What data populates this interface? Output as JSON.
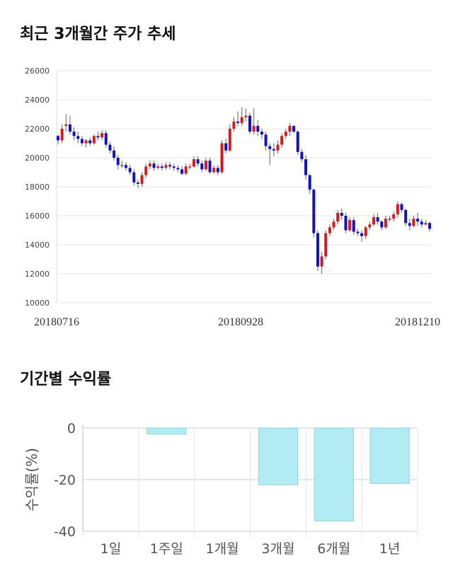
{
  "sections": {
    "price_title": "최근 3개월간 주가 추세",
    "returns_title": "기간별 수익률"
  },
  "colors": {
    "up": "#d7191c",
    "down": "#1010c8",
    "wick": "#666666",
    "bar_fill": "#b3ebf2",
    "bar_stroke": "#8fd3e0",
    "grid": "#e6e6e6"
  },
  "chart_data": [
    {
      "type": "candlestick",
      "title": "최근 3개월간 주가 추세",
      "ylim": [
        10000,
        26000
      ],
      "yticks": [
        10000,
        12000,
        14000,
        16000,
        18000,
        20000,
        22000,
        24000,
        26000
      ],
      "xtick_labels": [
        "20180716",
        "20180928",
        "20181210"
      ],
      "grid": true,
      "candles": [
        [
          21500,
          21200,
          21600,
          20900
        ],
        [
          21200,
          22000,
          22300,
          21000
        ],
        [
          22200,
          22300,
          23000,
          21800
        ],
        [
          22300,
          21800,
          22900,
          21600
        ],
        [
          21800,
          21500,
          22100,
          21200
        ],
        [
          21500,
          21300,
          21800,
          21000
        ],
        [
          21300,
          21000,
          21500,
          20800
        ],
        [
          21000,
          21200,
          21300,
          20700
        ],
        [
          21200,
          21000,
          21400,
          20800
        ],
        [
          21000,
          21500,
          21600,
          20900
        ],
        [
          21500,
          21400,
          21800,
          21200
        ],
        [
          21400,
          21700,
          21900,
          21200
        ],
        [
          21700,
          20900,
          21900,
          20700
        ],
        [
          20900,
          20500,
          21100,
          20300
        ],
        [
          20500,
          20000,
          20800,
          19800
        ],
        [
          20000,
          19500,
          20200,
          19200
        ],
        [
          19500,
          19500,
          19800,
          19300
        ],
        [
          19500,
          19300,
          19700,
          19100
        ],
        [
          19300,
          19000,
          19500,
          18800
        ],
        [
          19000,
          18300,
          19200,
          18100
        ],
        [
          18300,
          18200,
          18500,
          17900
        ],
        [
          18200,
          18800,
          19000,
          18000
        ],
        [
          18800,
          19400,
          19600,
          18600
        ],
        [
          19400,
          19600,
          19800,
          19200
        ],
        [
          19600,
          19300,
          19800,
          19100
        ],
        [
          19300,
          19400,
          19600,
          19200
        ],
        [
          19400,
          19300,
          19600,
          19100
        ],
        [
          19300,
          19500,
          19700,
          19200
        ],
        [
          19500,
          19400,
          19700,
          19200
        ],
        [
          19400,
          19300,
          19600,
          19100
        ],
        [
          19300,
          19200,
          19500,
          19000
        ],
        [
          19200,
          18900,
          19400,
          18800
        ],
        [
          18900,
          19400,
          19600,
          18800
        ],
        [
          19400,
          19400,
          19600,
          19200
        ],
        [
          19400,
          19900,
          20100,
          19300
        ],
        [
          19900,
          19600,
          20100,
          19400
        ],
        [
          19600,
          19200,
          19800,
          19000
        ],
        [
          19200,
          19800,
          20000,
          19100
        ],
        [
          19800,
          19000,
          20000,
          18900
        ],
        [
          19000,
          19300,
          19500,
          18900
        ],
        [
          19300,
          19000,
          19500,
          18800
        ],
        [
          19000,
          21000,
          21200,
          18900
        ],
        [
          21000,
          20500,
          21300,
          20300
        ],
        [
          20500,
          22000,
          22300,
          20400
        ],
        [
          22000,
          22500,
          22800,
          21800
        ],
        [
          22500,
          22400,
          23200,
          22200
        ],
        [
          22400,
          22800,
          23500,
          22200
        ],
        [
          22800,
          22900,
          23400,
          22500
        ],
        [
          22900,
          21800,
          23100,
          21600
        ],
        [
          21800,
          22200,
          23400,
          21600
        ],
        [
          22200,
          21800,
          22600,
          21500
        ],
        [
          21800,
          21600,
          22000,
          21300
        ],
        [
          21600,
          20800,
          21800,
          20500
        ],
        [
          20800,
          20600,
          21000,
          19500
        ],
        [
          20600,
          20500,
          21000,
          20100
        ],
        [
          20500,
          20900,
          21200,
          20300
        ],
        [
          20900,
          21500,
          21700,
          20700
        ],
        [
          21500,
          21800,
          22000,
          21300
        ],
        [
          21800,
          22200,
          22400,
          21500
        ],
        [
          22200,
          21800,
          22100,
          21700
        ],
        [
          21800,
          20400,
          21900,
          20200
        ],
        [
          20400,
          19900,
          20600,
          19700
        ],
        [
          19900,
          18800,
          20200,
          18500
        ],
        [
          18800,
          17800,
          18900,
          17500
        ],
        [
          17800,
          14800,
          17900,
          14500
        ],
        [
          14800,
          12500,
          15000,
          12200
        ],
        [
          12500,
          13200,
          13500,
          12000
        ],
        [
          13200,
          14800,
          15000,
          13000
        ],
        [
          14800,
          15200,
          15400,
          14600
        ],
        [
          15200,
          15600,
          15800,
          15000
        ],
        [
          15600,
          16200,
          16400,
          15400
        ],
        [
          16200,
          16000,
          16500,
          15700
        ],
        [
          16000,
          15000,
          16200,
          14800
        ],
        [
          15000,
          15700,
          15900,
          14900
        ],
        [
          15700,
          14900,
          15900,
          14700
        ],
        [
          14900,
          14800,
          15100,
          14600
        ],
        [
          14800,
          14600,
          15000,
          14200
        ],
        [
          14600,
          15200,
          15300,
          14400
        ],
        [
          15200,
          15400,
          15600,
          15000
        ],
        [
          15400,
          15900,
          16100,
          15300
        ],
        [
          15900,
          15600,
          16200,
          15400
        ],
        [
          15600,
          15200,
          15700,
          15000
        ],
        [
          15200,
          15800,
          16000,
          15100
        ],
        [
          15800,
          15800,
          16000,
          15600
        ],
        [
          15800,
          16100,
          16300,
          15600
        ],
        [
          16100,
          16800,
          17000,
          15900
        ],
        [
          16800,
          16400,
          16900,
          16200
        ],
        [
          16400,
          15500,
          16500,
          15300
        ],
        [
          15500,
          15300,
          15800,
          15000
        ],
        [
          15300,
          15800,
          16000,
          15200
        ],
        [
          15800,
          15600,
          16200,
          15300
        ],
        [
          15600,
          15400,
          15800,
          15200
        ],
        [
          15400,
          15500,
          15700,
          15300
        ],
        [
          15500,
          15100,
          15600,
          14900
        ]
      ]
    },
    {
      "type": "bar",
      "title": "기간별 수익률",
      "categories": [
        "1일",
        "1주일",
        "1개월",
        "3개월",
        "6개월",
        "1년"
      ],
      "values": [
        0,
        -2.4,
        0,
        -22,
        -36,
        -21.5
      ],
      "ylabel": "수익률(%)",
      "ylim": [
        -40,
        0
      ],
      "yticks": [
        0,
        -20,
        -40
      ],
      "grid": true
    }
  ]
}
